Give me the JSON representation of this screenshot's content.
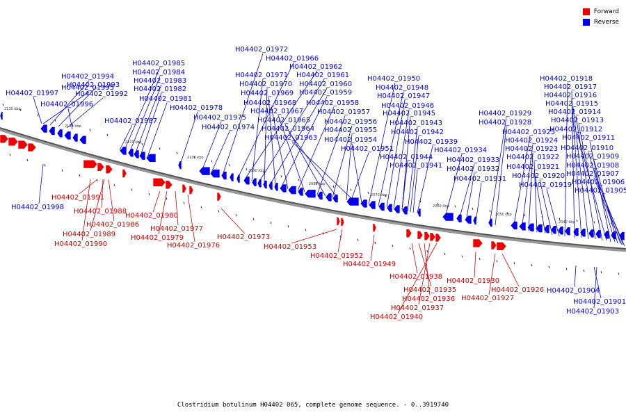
{
  "legend": {
    "forward_label": "Forward",
    "reverse_label": "Reverse",
    "forward_color": "#ee0000",
    "reverse_color": "#0000ee"
  },
  "footer": "Clostridium botulinum H04402 065, complete genome sequence. - 0..3919740",
  "ticks": [
    "2130 kbp",
    "2120 kbp",
    "2110 kbp",
    "2100 kbp",
    "2090 kbp",
    "2080 kbp",
    "2070 kbp",
    "2060 kbp",
    "2050 kbp",
    "2040 kbp"
  ],
  "forward_labels": [
    "H04402_01991",
    "H04402_01988",
    "H04402_01986",
    "H04402_01989",
    "H04402_01990",
    "H04402_01980",
    "H04402_01977",
    "H04402_01979",
    "H04402_01976",
    "H04402_01973",
    "H04402_01953",
    "H04402_01952",
    "H04402_01949",
    "H04402_01938",
    "H04402_01935",
    "H04402_01936",
    "H04402_01937",
    "H04402_01940",
    "H04402_01930",
    "H04402_01927",
    "H04402_01926"
  ],
  "reverse_labels": [
    "H04402_01995",
    "H04402_01994",
    "H04402_01993",
    "H04402_01997",
    "H04402_01992",
    "H04402_01996",
    "H04402_01998",
    "H04402_01985",
    "H04402_01984",
    "H04402_01983",
    "H04402_01982",
    "H04402_01981",
    "H04402_01987",
    "H04402_01978",
    "H04402_01975",
    "H04402_01974",
    "H04402_01972",
    "H04402_01966",
    "H04402_01962",
    "H04402_01971",
    "H04402_01961",
    "H04402_01970",
    "H04402_01960",
    "H04402_01969",
    "H04402_01959",
    "H04402_01968",
    "H04402_01958",
    "H04402_01967",
    "H04402_01957",
    "H04402_01965",
    "H04402_01956",
    "H04402_01964",
    "H04402_01955",
    "H04402_01963",
    "H04402_01954",
    "H04402_01950",
    "H04402_01948",
    "H04402_01947",
    "H04402_01946",
    "H04402_01945",
    "H04402_01943",
    "H04402_01942",
    "H04402_01939",
    "H04402_01951",
    "H04402_01944",
    "H04402_01941",
    "H04402_01934",
    "H04402_01933",
    "H04402_01932",
    "H04402_01931",
    "H04402_01929",
    "H04402_01928",
    "H04402_01925",
    "H04402_01924",
    "H04402_01923",
    "H04402_01922",
    "H04402_01921",
    "H04402_01920",
    "H04402_01919",
    "H04402_01918",
    "H04402_01917",
    "H04402_01916",
    "H04402_01915",
    "H04402_01914",
    "H04402_01913",
    "H04402_01912",
    "H04402_01911",
    "H04402_01910",
    "H04402_01909",
    "H04402_01908",
    "H04402_01907",
    "H04402_01906",
    "H04402_01905",
    "H04402_01904",
    "H04402_01901",
    "H04402_01903"
  ]
}
